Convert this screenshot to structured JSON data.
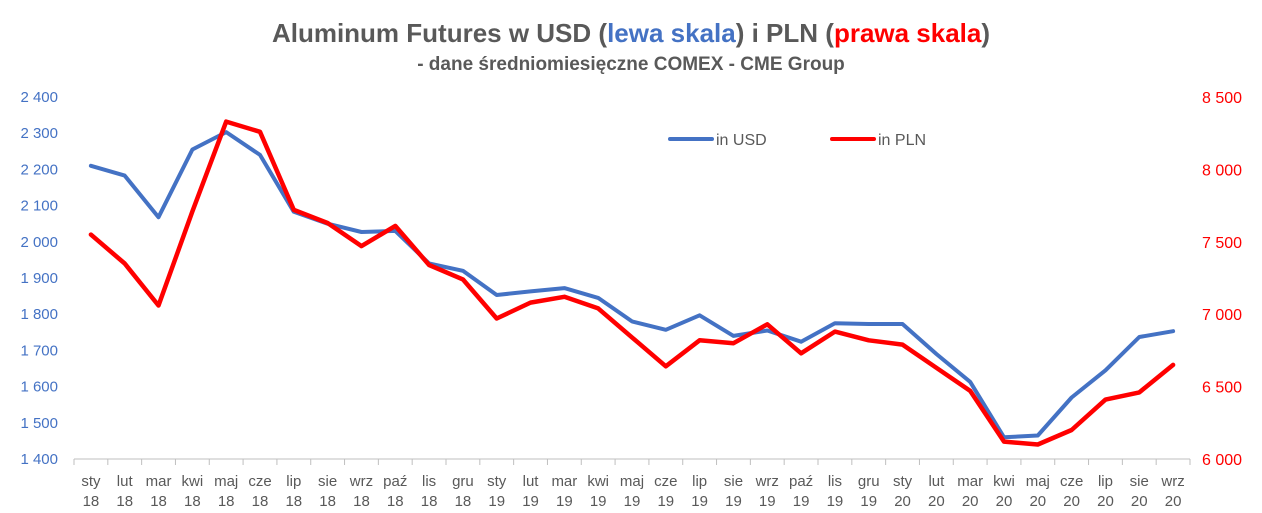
{
  "title": {
    "part1": "Aluminum Futures w USD (",
    "usd_label": "lewa skala",
    "part2": ") i PLN (",
    "pln_label": "prawa skala",
    "part3": ")",
    "subtitle": "- dane średniomiesięczne  COMEX - CME Group"
  },
  "colors": {
    "usd": "#4472C4",
    "pln": "#FF0000",
    "text": "#595959",
    "axis_left": "#4472C4",
    "axis_right": "#FF0000"
  },
  "chart_data": {
    "type": "line",
    "title": "Aluminum Futures w USD (lewa skala) i PLN (prawa skala)",
    "subtitle": "- dane średniomiesięczne  COMEX - CME Group",
    "categories": [
      [
        "sty",
        "18"
      ],
      [
        "lut",
        "18"
      ],
      [
        "mar",
        "18"
      ],
      [
        "kwi",
        "18"
      ],
      [
        "maj",
        "18"
      ],
      [
        "cze",
        "18"
      ],
      [
        "lip",
        "18"
      ],
      [
        "sie",
        "18"
      ],
      [
        "wrz",
        "18"
      ],
      [
        "paź",
        "18"
      ],
      [
        "lis",
        "18"
      ],
      [
        "gru",
        "18"
      ],
      [
        "sty",
        "19"
      ],
      [
        "lut",
        "19"
      ],
      [
        "mar",
        "19"
      ],
      [
        "kwi",
        "19"
      ],
      [
        "maj",
        "19"
      ],
      [
        "cze",
        "19"
      ],
      [
        "lip",
        "19"
      ],
      [
        "sie",
        "19"
      ],
      [
        "wrz",
        "19"
      ],
      [
        "paź",
        "19"
      ],
      [
        "lis",
        "19"
      ],
      [
        "gru",
        "19"
      ],
      [
        "sty",
        "20"
      ],
      [
        "lut",
        "20"
      ],
      [
        "mar",
        "20"
      ],
      [
        "kwi",
        "20"
      ],
      [
        "maj",
        "20"
      ],
      [
        "cze",
        "20"
      ],
      [
        "lip",
        "20"
      ],
      [
        "sie",
        "20"
      ],
      [
        "wrz",
        "20"
      ]
    ],
    "y_left": {
      "min": 1400,
      "max": 2400,
      "step": 100,
      "ticks": [
        "1 400",
        "1 500",
        "1 600",
        "1 700",
        "1 800",
        "1 900",
        "2 000",
        "2 100",
        "2 200",
        "2 300",
        "2 400"
      ]
    },
    "y_right": {
      "min": 6000,
      "max": 8500,
      "step": 500,
      "ticks": [
        "6 000",
        "6 500",
        "7 000",
        "7 500",
        "8 000",
        "8 500"
      ]
    },
    "legend_position": "top-right",
    "grid": false,
    "series": [
      {
        "name": "in USD",
        "axis": "left",
        "values": [
          2210,
          2183,
          2068,
          2255,
          2303,
          2240,
          2083,
          2050,
          2027,
          2030,
          1940,
          1920,
          1853,
          1863,
          1872,
          1845,
          1780,
          1757,
          1797,
          1740,
          1755,
          1724,
          1775,
          1773,
          1773,
          1690,
          1613,
          1460,
          1465,
          1570,
          1645,
          1737,
          1753
        ]
      },
      {
        "name": "in PLN",
        "axis": "right",
        "values": [
          7550,
          7350,
          7060,
          7710,
          8330,
          8260,
          7720,
          7630,
          7470,
          7610,
          7340,
          7240,
          6970,
          7080,
          7120,
          7040,
          6840,
          6640,
          6820,
          6800,
          6930,
          6730,
          6880,
          6820,
          6790,
          6630,
          6470,
          6120,
          6100,
          6200,
          6410,
          6460,
          6650
        ]
      }
    ]
  }
}
